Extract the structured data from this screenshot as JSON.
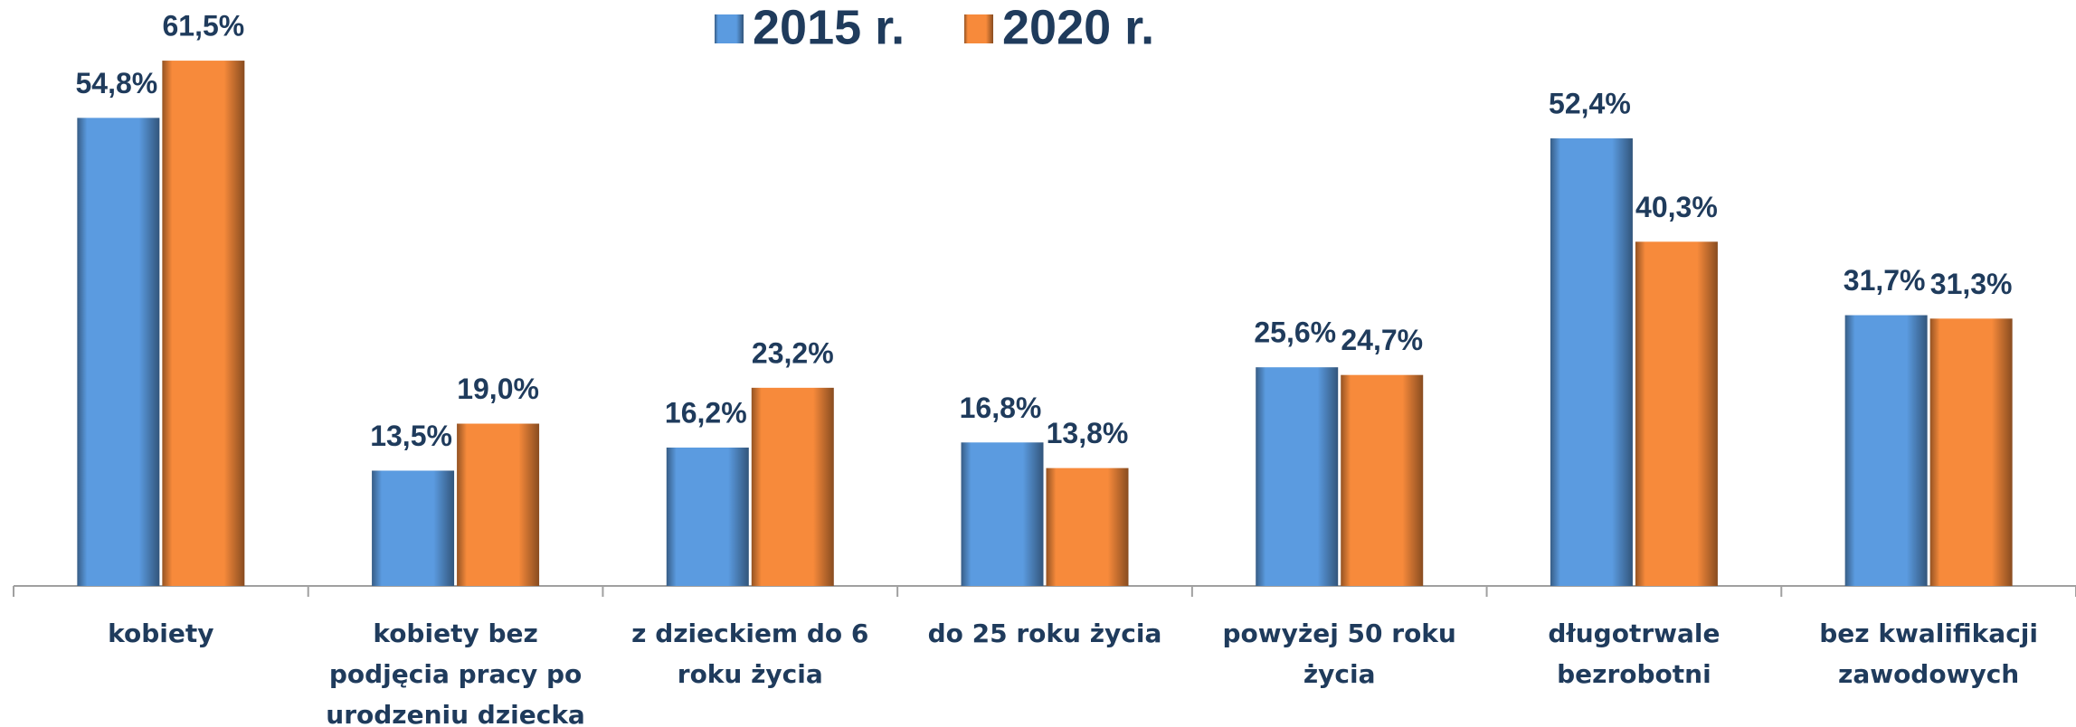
{
  "chart_data": {
    "type": "bar",
    "categories": [
      "kobiety",
      "kobiety bez podjęcia pracy po urodzeniu dziecka",
      "z dzieckiem do 6 roku życia",
      "do 25 roku życia",
      "powyżej 50 roku życia",
      "długotrwale bezrobotni",
      "bez kwalifikacji zawodowych"
    ],
    "series": [
      {
        "name": "2015 r.",
        "color": "#5b9be0",
        "values": [
          54.8,
          13.5,
          16.2,
          16.8,
          25.6,
          52.4,
          31.7
        ],
        "value_labels": [
          "54,8%",
          "13,5%",
          "16,2%",
          "16,8%",
          "25,6%",
          "52,4%",
          "31,7%"
        ]
      },
      {
        "name": "2020 r.",
        "color": "#f78a3b",
        "values": [
          61.5,
          19.0,
          23.2,
          13.8,
          24.7,
          40.3,
          31.3
        ],
        "value_labels": [
          "61,5%",
          "19,0%",
          "23,2%",
          "13,8%",
          "24,7%",
          "40,3%",
          "31,3%"
        ]
      }
    ],
    "ylim": [
      0,
      68.6
    ],
    "legend": "top",
    "grid": false
  }
}
